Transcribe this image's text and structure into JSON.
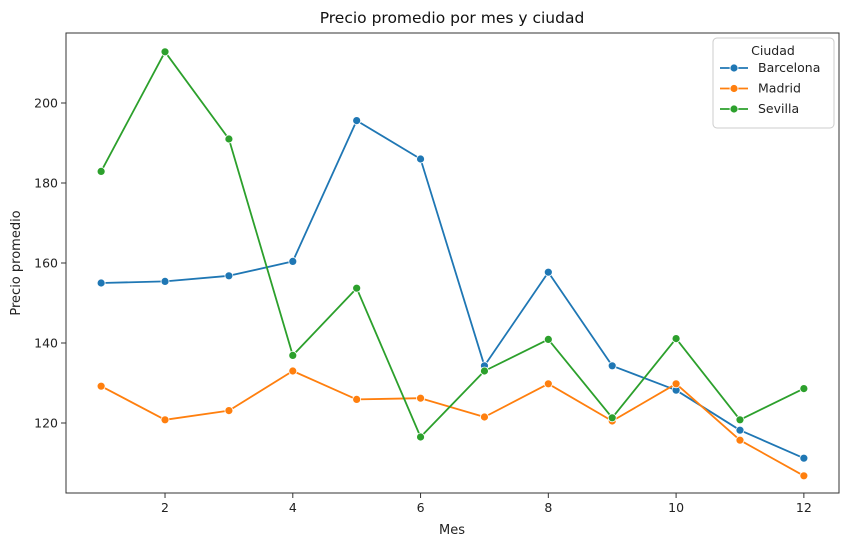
{
  "chart_data": {
    "type": "line",
    "title": "Precio promedio por mes y ciudad",
    "xlabel": "Mes",
    "ylabel": "Precio promedio",
    "xlim": [
      0.45,
      12.55
    ],
    "ylim": [
      102.5,
      217.5
    ],
    "xticks": [
      2,
      4,
      6,
      8,
      10,
      12
    ],
    "yticks": [
      120,
      140,
      160,
      180,
      200
    ],
    "x": [
      1,
      2,
      3,
      4,
      5,
      6,
      7,
      8,
      9,
      10,
      11,
      12
    ],
    "grid": false,
    "legend": {
      "title": "Ciudad",
      "position": "top-right"
    },
    "series": [
      {
        "name": "Barcelona",
        "color": "#1f77b4",
        "values": [
          155.0,
          155.4,
          156.8,
          160.4,
          195.6,
          186.0,
          134.3,
          157.7,
          134.3,
          128.2,
          118.2,
          111.2
        ]
      },
      {
        "name": "Madrid",
        "color": "#ff7f0e",
        "values": [
          129.2,
          120.8,
          123.1,
          133.0,
          125.9,
          126.2,
          121.5,
          129.8,
          120.5,
          129.8,
          115.7,
          106.8
        ]
      },
      {
        "name": "Sevilla",
        "color": "#2ca02c",
        "values": [
          182.9,
          212.8,
          191.0,
          136.9,
          153.7,
          116.5,
          133.0,
          140.9,
          121.3,
          141.1,
          120.8,
          128.6
        ]
      }
    ]
  }
}
